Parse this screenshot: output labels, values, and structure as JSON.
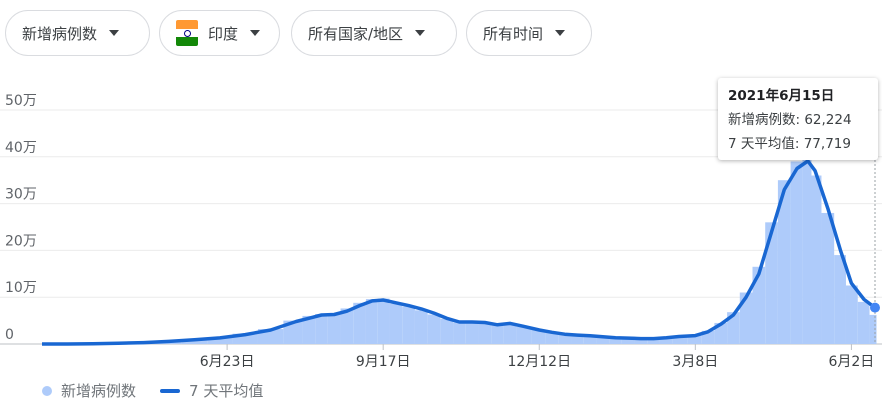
{
  "filters": {
    "metric": "新增病例数",
    "country": "印度",
    "region": "所有国家/地区",
    "time": "所有时间"
  },
  "flag_colors": [
    "#ff9933",
    "#ffffff",
    "#138808"
  ],
  "tooltip": {
    "date": "2021年6月15日",
    "new_cases": "新增病例数: 62,224",
    "avg": "7 天平均值: 77,719"
  },
  "legend": {
    "bars": "新增病例数",
    "line": "7 天平均值"
  },
  "colors": {
    "bars": "#aecbfa",
    "line": "#1967d2",
    "marker": "#4285f4"
  },
  "chart_data": {
    "type": "bar+line",
    "xlim": [
      "2020-03-13",
      "2021-06-15"
    ],
    "ylim": [
      0,
      500000
    ],
    "yticks": [
      {
        "v": 0,
        "label": "0"
      },
      {
        "v": 100000,
        "label": "10万"
      },
      {
        "v": 200000,
        "label": "20万"
      },
      {
        "v": 300000,
        "label": "30万"
      },
      {
        "v": 400000,
        "label": "40万"
      },
      {
        "v": 500000,
        "label": "50万"
      }
    ],
    "xticks": [
      {
        "d": "2020-06-23",
        "label": "6月23日"
      },
      {
        "d": "2020-09-17",
        "label": "9月17日"
      },
      {
        "d": "2020-12-12",
        "label": "12月12日"
      },
      {
        "d": "2021-03-08",
        "label": "3月8日"
      },
      {
        "d": "2021-06-02",
        "label": "6月2日"
      }
    ],
    "grid": true,
    "legend": "bottom-left",
    "dates": [
      "2020-03-13",
      "2020-03-27",
      "2020-04-10",
      "2020-04-24",
      "2020-05-08",
      "2020-05-22",
      "2020-06-05",
      "2020-06-19",
      "2020-07-03",
      "2020-07-17",
      "2020-07-31",
      "2020-08-07",
      "2020-08-14",
      "2020-08-21",
      "2020-08-28",
      "2020-09-04",
      "2020-09-11",
      "2020-09-17",
      "2020-09-24",
      "2020-10-01",
      "2020-10-08",
      "2020-10-15",
      "2020-10-22",
      "2020-10-29",
      "2020-11-05",
      "2020-11-12",
      "2020-11-19",
      "2020-11-26",
      "2020-12-03",
      "2020-12-12",
      "2020-12-19",
      "2020-12-26",
      "2021-01-02",
      "2021-01-09",
      "2021-01-16",
      "2021-01-23",
      "2021-01-30",
      "2021-02-06",
      "2021-02-13",
      "2021-02-20",
      "2021-02-27",
      "2021-03-08",
      "2021-03-15",
      "2021-03-22",
      "2021-03-29",
      "2021-04-05",
      "2021-04-12",
      "2021-04-19",
      "2021-04-26",
      "2021-05-03",
      "2021-05-09",
      "2021-05-13",
      "2021-05-20",
      "2021-05-27",
      "2021-06-02",
      "2021-06-09",
      "2021-06-15"
    ],
    "series": [
      {
        "name": "新增病例数",
        "type": "bar",
        "values": [
          100,
          200,
          900,
          1800,
          3500,
          6000,
          9500,
          14000,
          22000,
          32000,
          50000,
          60000,
          64000,
          66000,
          76000,
          88000,
          96000,
          97000,
          86000,
          80000,
          72000,
          63000,
          54000,
          46000,
          48000,
          45000,
          42000,
          43000,
          37000,
          30000,
          24000,
          20000,
          18000,
          17000,
          15000,
          13000,
          12000,
          11000,
          11500,
          14000,
          16500,
          19000,
          28000,
          45000,
          68000,
          110000,
          165000,
          260000,
          350000,
          390000,
          400000,
          360000,
          280000,
          190000,
          125000,
          90000,
          62224
        ]
      },
      {
        "name": "7 天平均值",
        "type": "line",
        "values": [
          0,
          100,
          700,
          1500,
          3000,
          5500,
          9000,
          13000,
          20000,
          30000,
          48000,
          55000,
          62000,
          63000,
          70000,
          82000,
          92000,
          94000,
          88000,
          82000,
          75000,
          66000,
          55000,
          47000,
          47000,
          46000,
          41000,
          44000,
          38000,
          30000,
          25000,
          21000,
          19000,
          17500,
          15500,
          13500,
          12500,
          11500,
          11500,
          13500,
          16000,
          18000,
          26000,
          42000,
          62000,
          100000,
          150000,
          240000,
          330000,
          375000,
          391000,
          370000,
          290000,
          200000,
          130000,
          95000,
          77719
        ]
      }
    ]
  }
}
